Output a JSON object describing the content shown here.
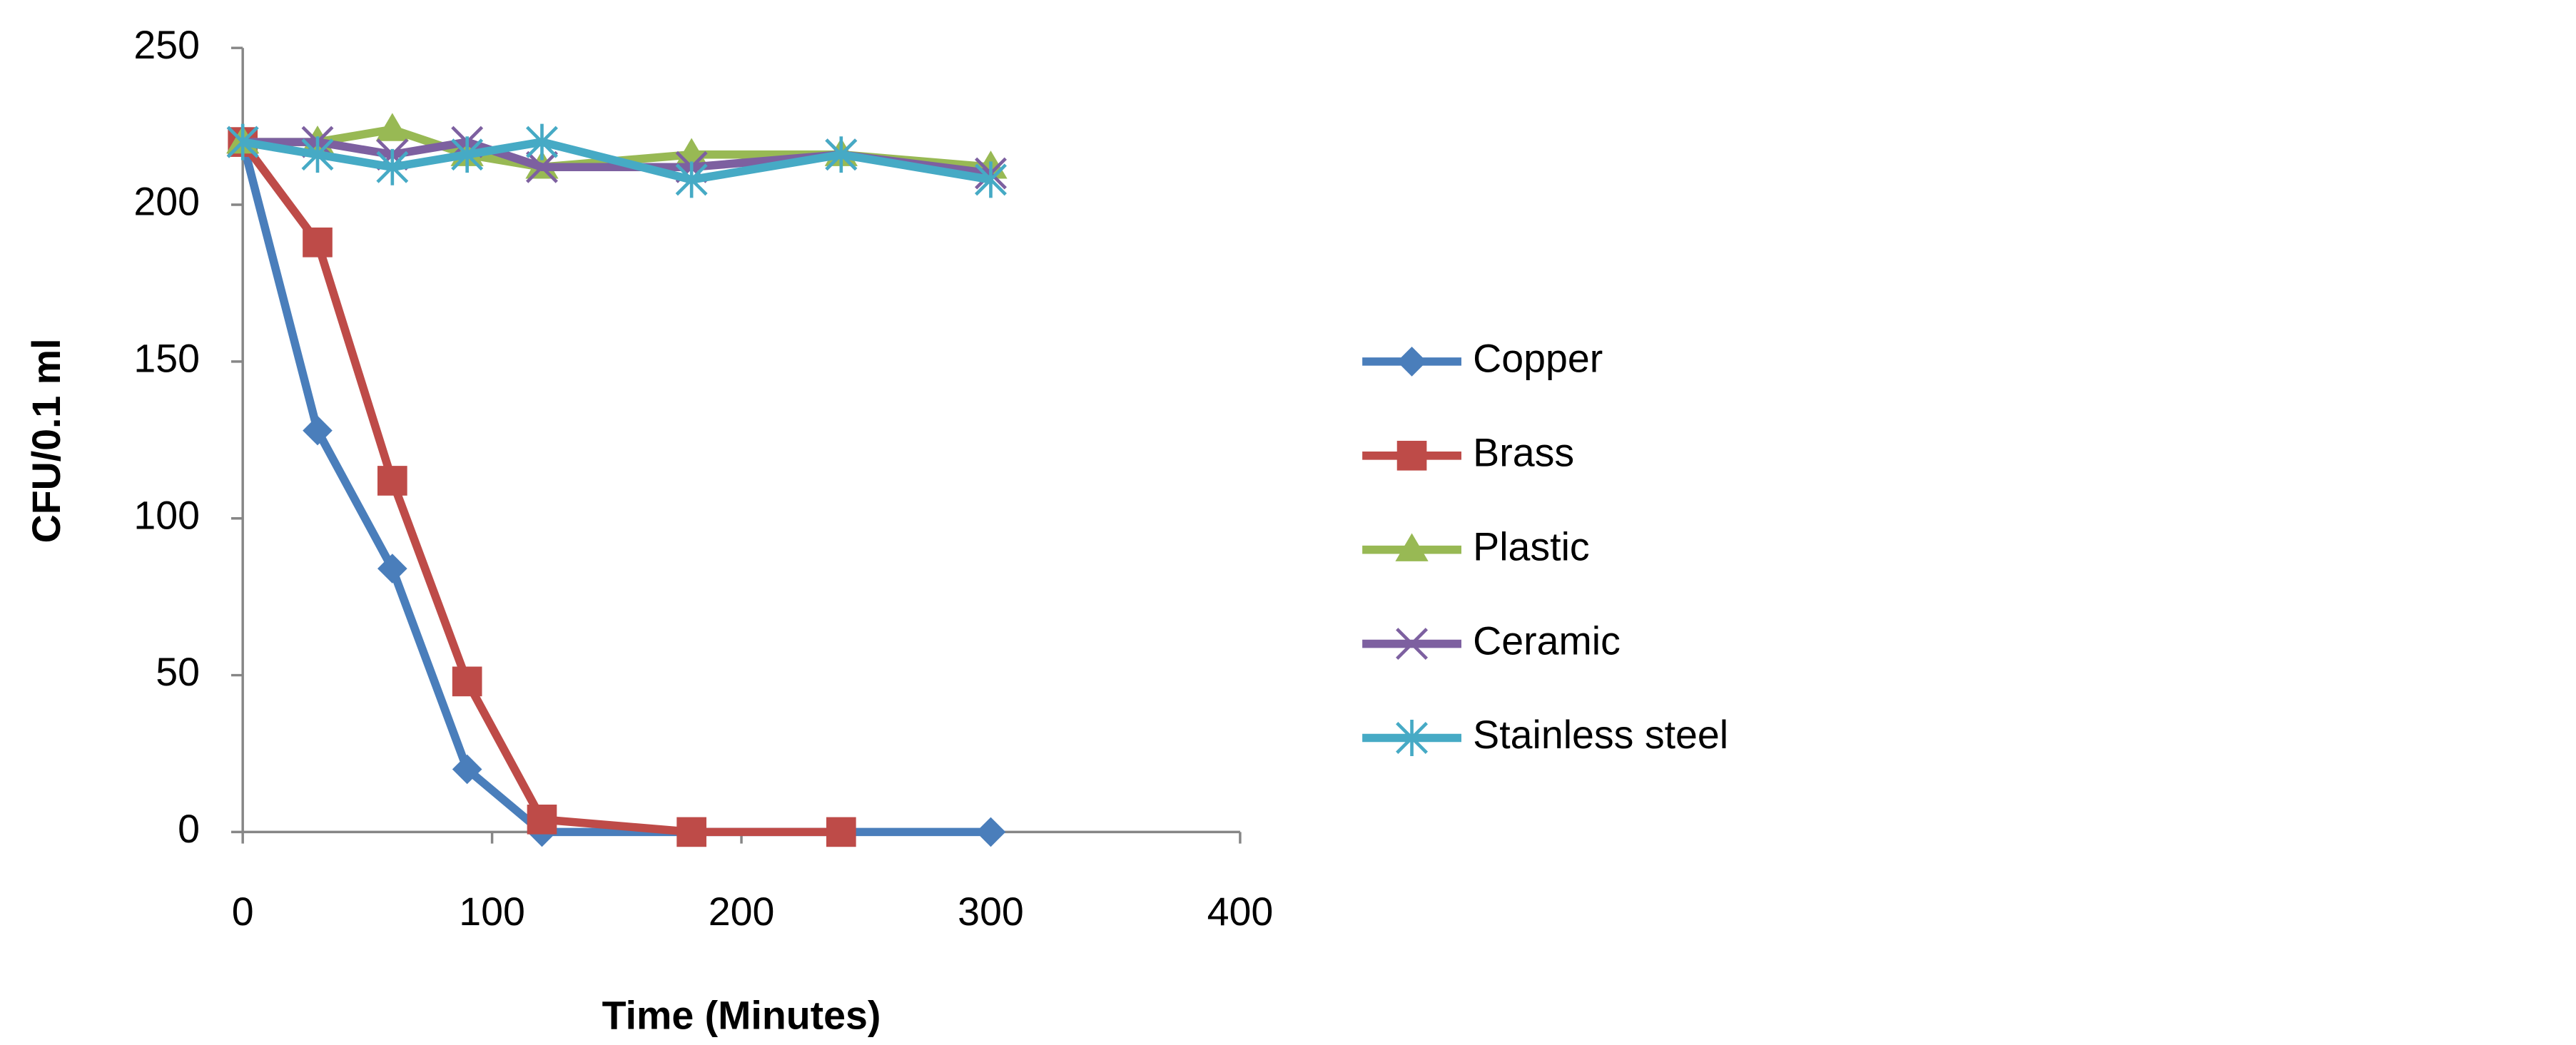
{
  "chart_data": {
    "type": "line",
    "xlabel": "Time (Minutes)",
    "ylabel": "CFU/0.1 ml",
    "xlim": [
      0,
      400
    ],
    "xticks": [
      0,
      100,
      200,
      300,
      400
    ],
    "ylim": [
      0,
      250
    ],
    "yticks": [
      0,
      50,
      100,
      150,
      200,
      250
    ],
    "legend": "right",
    "series": [
      {
        "name": "Copper",
        "color": "#4a7ebb",
        "marker": "diamond",
        "x": [
          0,
          30,
          60,
          90,
          120,
          300
        ],
        "values": [
          220,
          128,
          84,
          20,
          0,
          0
        ]
      },
      {
        "name": "Brass",
        "color": "#be4b48",
        "marker": "square",
        "x": [
          0,
          30,
          60,
          90,
          120,
          180,
          240
        ],
        "values": [
          220,
          188,
          112,
          48,
          4,
          0,
          0
        ]
      },
      {
        "name": "Plastic",
        "color": "#98b954",
        "marker": "triangle",
        "x": [
          0,
          30,
          60,
          90,
          120,
          180,
          240,
          300
        ],
        "values": [
          220,
          220,
          224,
          216,
          212,
          216,
          216,
          212
        ]
      },
      {
        "name": "Ceramic",
        "color": "#7d60a0",
        "marker": "x",
        "x": [
          0,
          30,
          60,
          90,
          120,
          180,
          240,
          300
        ],
        "values": [
          220,
          220,
          216,
          220,
          212,
          212,
          216,
          210
        ]
      },
      {
        "name": "Stainless steel",
        "color": "#46aac5",
        "marker": "star",
        "x": [
          0,
          30,
          60,
          90,
          120,
          180,
          240,
          300
        ],
        "values": [
          220,
          216,
          212,
          216,
          220,
          208,
          216,
          208
        ]
      }
    ]
  }
}
